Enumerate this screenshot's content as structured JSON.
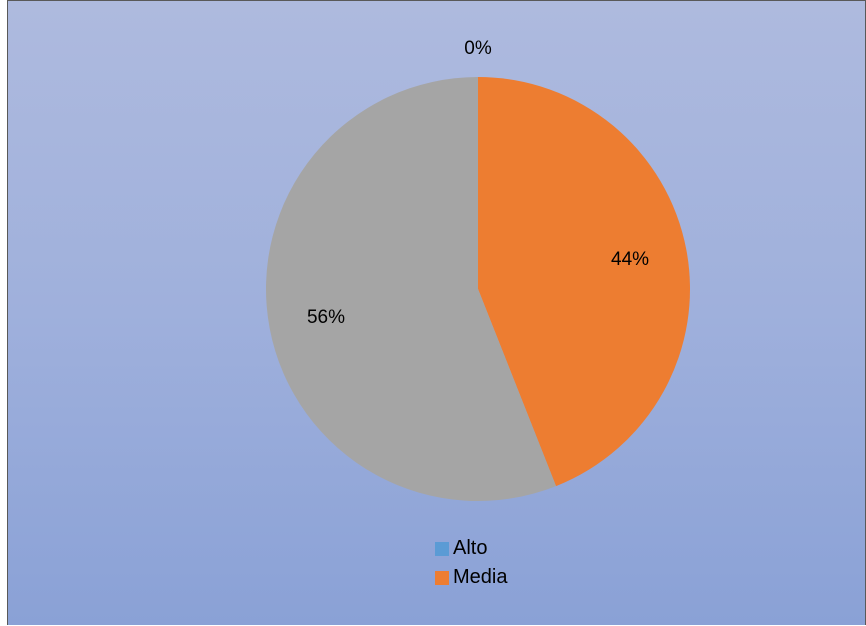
{
  "chart_data": {
    "type": "pie",
    "categories": [
      "Alto",
      "Media",
      ""
    ],
    "values": [
      0,
      44,
      56
    ],
    "data_labels": [
      "0%",
      "44%",
      "56%"
    ],
    "colors": [
      "#5b9bd5",
      "#ed7d31",
      "#a5a5a5"
    ],
    "legend": {
      "position": "bottom",
      "entries": [
        "Alto",
        "Media"
      ]
    },
    "title": ""
  }
}
